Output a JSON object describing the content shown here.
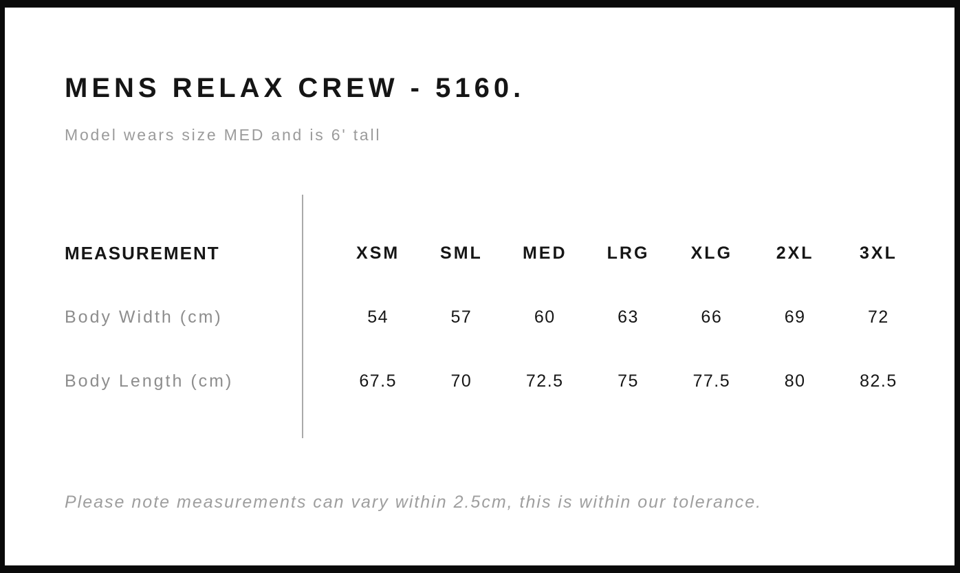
{
  "header": {
    "title": "MENS RELAX CREW - 5160.",
    "subtitle": "Model wears size MED and is 6' tall"
  },
  "table": {
    "measurement_header": "MEASUREMENT",
    "sizes": [
      "XSM",
      "SML",
      "MED",
      "LRG",
      "XLG",
      "2XL",
      "3XL"
    ],
    "rows": [
      {
        "label": "Body Width (cm)",
        "values": [
          "54",
          "57",
          "60",
          "63",
          "66",
          "69",
          "72"
        ]
      },
      {
        "label": "Body Length (cm)",
        "values": [
          "67.5",
          "70",
          "72.5",
          "75",
          "77.5",
          "80",
          "82.5"
        ]
      }
    ]
  },
  "footer": {
    "note": "Please note measurements can vary within 2.5cm, this is within our tolerance."
  },
  "colors": {
    "text": "#161616",
    "muted_gray": "#8d8d8d",
    "subtitle_gray": "#9b9b9b",
    "divider": "#a9a9a9",
    "frame": "#0a0a0a",
    "background": "#ffffff"
  },
  "chart_data": {
    "type": "table",
    "title": "MENS RELAX CREW - 5160.",
    "subtitle": "Model wears size MED and is 6' tall",
    "columns": [
      "MEASUREMENT",
      "XSM",
      "SML",
      "MED",
      "LRG",
      "XLG",
      "2XL",
      "3XL"
    ],
    "rows": [
      [
        "Body Width (cm)",
        54,
        57,
        60,
        63,
        66,
        69,
        72
      ],
      [
        "Body Length (cm)",
        67.5,
        70,
        72.5,
        75,
        77.5,
        80,
        82.5
      ]
    ],
    "footnote": "Please note measurements can vary within 2.5cm, this is within our tolerance.",
    "layout": {
      "grid": "off",
      "divider": "vertical line between label column and size columns"
    }
  }
}
